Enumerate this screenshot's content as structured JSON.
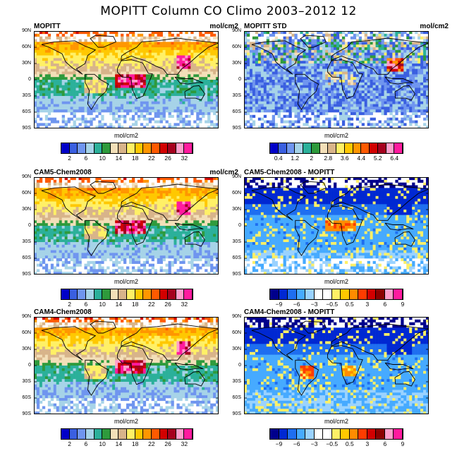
{
  "figure_title": "MOPITT Column CO Climo 2003–2012 12",
  "lat_labels": [
    "90N",
    "60N",
    "30N",
    "0",
    "30S",
    "60S",
    "90S"
  ],
  "colors": {
    "abs": [
      "#0000c8",
      "#3a5fe0",
      "#6f95ef",
      "#a6d3e8",
      "#2bb09a",
      "#2e9a3c",
      "#f3dfb8",
      "#d8b48a",
      "#fff066",
      "#ffc800",
      "#ff9600",
      "#ff5a00",
      "#d20000",
      "#a5001e",
      "#ff9ecb",
      "#ff1a9e"
    ],
    "std": [
      "#0000c8",
      "#3a5fe0",
      "#6f95ef",
      "#a6d3e8",
      "#2bb09a",
      "#2e9a3c",
      "#f3dfb8",
      "#d8b48a",
      "#fff066",
      "#ffc800",
      "#ff9600",
      "#ff5a00",
      "#d20000",
      "#a5001e",
      "#ff9ecb",
      "#ff1a9e"
    ],
    "diff": [
      "#00008c",
      "#0028d2",
      "#1e6ef0",
      "#46aaff",
      "#9ad2ff",
      "#ffffff",
      "#ffffff",
      "#fff066",
      "#ffc800",
      "#ff8c00",
      "#ff3c00",
      "#d20000",
      "#8c0000",
      "#ff9ecb",
      "#ff1a9e"
    ]
  },
  "chart_data": [
    {
      "type": "heatmap",
      "title": "MOPITT",
      "units": "mol/cm2",
      "colorbar_label": "mol/cm2",
      "colorbar_ticks": [
        "2",
        "6",
        "10",
        "14",
        "18",
        "22",
        "26",
        "32"
      ],
      "palette": "abs",
      "style": "abs"
    },
    {
      "type": "heatmap",
      "title": "MOPITT STD",
      "units": "mol/cm2",
      "colorbar_label": "mol/cm2",
      "colorbar_ticks": [
        "0.4",
        "1.2",
        "2",
        "2.8",
        "3.6",
        "4.4",
        "5.2",
        "6.4"
      ],
      "palette": "std",
      "style": "std"
    },
    {
      "type": "heatmap",
      "title": "CAM5-Chem2008",
      "units": "mol/cm2",
      "colorbar_label": "mol/cm2",
      "colorbar_ticks": [
        "2",
        "6",
        "10",
        "14",
        "18",
        "22",
        "26",
        "32"
      ],
      "palette": "abs",
      "style": "abs"
    },
    {
      "type": "heatmap",
      "title": "CAM5-Chem2008 - MOPITT",
      "units": "",
      "colorbar_label": "mol/cm2",
      "colorbar_ticks": [
        "−9",
        "−6",
        "−3",
        "−0.5",
        "0.5",
        "3",
        "6",
        "9"
      ],
      "palette": "diff",
      "style": "diff5"
    },
    {
      "type": "heatmap",
      "title": "CAM4-Chem2008",
      "units": "",
      "colorbar_label": "mol/cm2",
      "colorbar_ticks": [
        "2",
        "6",
        "10",
        "14",
        "18",
        "22",
        "26",
        "32"
      ],
      "palette": "abs",
      "style": "abs"
    },
    {
      "type": "heatmap",
      "title": "CAM4-Chem2008 - MOPITT",
      "units": "",
      "colorbar_label": "mol/cm2",
      "colorbar_ticks": [
        "−9",
        "−6",
        "−3",
        "−0.5",
        "0.5",
        "3",
        "6",
        "9"
      ],
      "palette": "diff",
      "style": "diff4"
    }
  ]
}
